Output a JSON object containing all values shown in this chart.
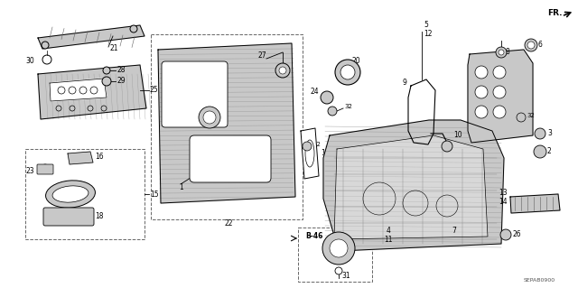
{
  "bg_color": "#ffffff",
  "diagram_id": "SEPAB0900"
}
